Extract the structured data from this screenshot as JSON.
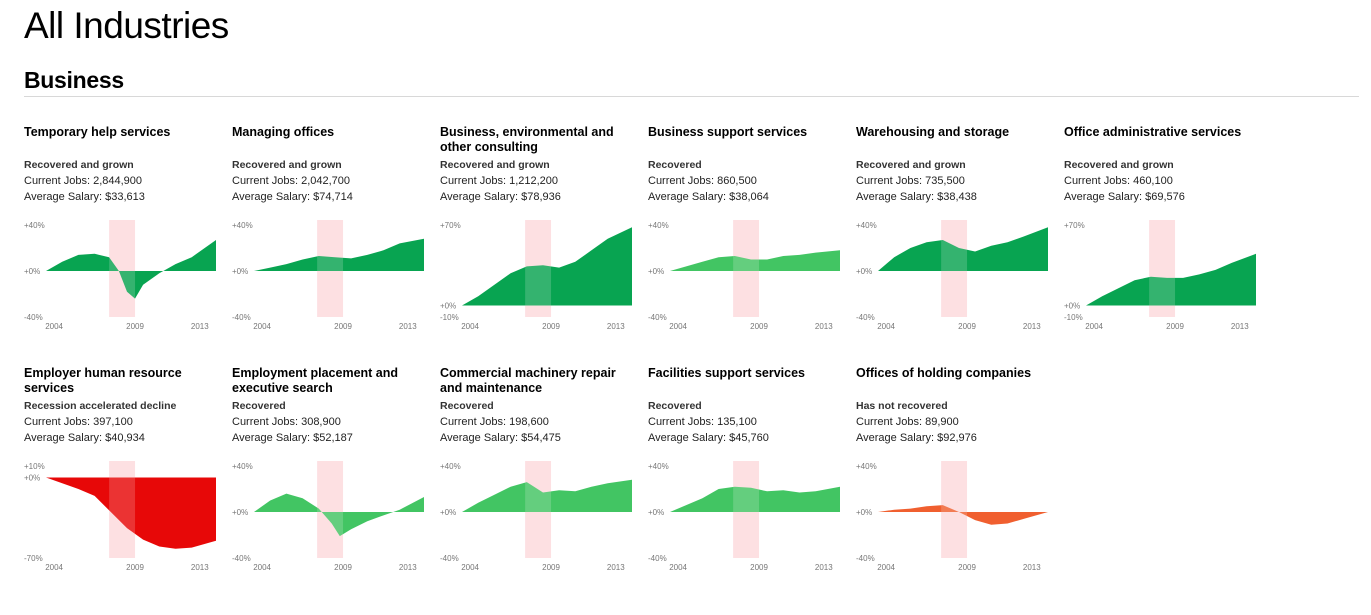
{
  "page": {
    "title": "All Industries",
    "section": "Business"
  },
  "colors": {
    "grown": "#00a14b",
    "recovered": "#3cc35e",
    "declined": "#e60000",
    "not_recovered": "#f05a28",
    "recession": "#fdd9dc",
    "axis_text": "#777777"
  },
  "chart_data": [
    {
      "type": "area",
      "title": "Temporary help services",
      "status": "Recovered and grown",
      "jobs": "Current Jobs: 2,844,900",
      "salary": "Average Salary: $33,613",
      "status_color": "grown",
      "ylim": [
        -40,
        40
      ],
      "yticks": [
        "+40%",
        "+0%",
        "-40%"
      ],
      "x_ticks": [
        "2004",
        "2009",
        "2013"
      ],
      "recession": [
        2007.9,
        2009.5
      ],
      "x_range": [
        2004,
        2014.5
      ],
      "points": [
        [
          2004,
          0
        ],
        [
          2005,
          8
        ],
        [
          2006,
          14
        ],
        [
          2007,
          15
        ],
        [
          2007.9,
          12
        ],
        [
          2008.5,
          0
        ],
        [
          2009,
          -18
        ],
        [
          2009.5,
          -24
        ],
        [
          2010,
          -12
        ],
        [
          2011,
          -2
        ],
        [
          2012,
          6
        ],
        [
          2013,
          12
        ],
        [
          2014.5,
          27
        ]
      ]
    },
    {
      "type": "area",
      "title": "Managing offices",
      "status": "Recovered and grown",
      "jobs": "Current Jobs: 2,042,700",
      "salary": "Average Salary: $74,714",
      "status_color": "grown",
      "ylim": [
        -40,
        40
      ],
      "yticks": [
        "+40%",
        "+0%",
        "-40%"
      ],
      "x_ticks": [
        "2004",
        "2009",
        "2013"
      ],
      "recession": [
        2007.9,
        2009.5
      ],
      "x_range": [
        2004,
        2014.5
      ],
      "points": [
        [
          2004,
          0
        ],
        [
          2005,
          3
        ],
        [
          2006,
          6
        ],
        [
          2007,
          10
        ],
        [
          2008,
          13
        ],
        [
          2009,
          12
        ],
        [
          2010,
          11
        ],
        [
          2011,
          14
        ],
        [
          2012,
          18
        ],
        [
          2013,
          24
        ],
        [
          2014.5,
          28
        ]
      ]
    },
    {
      "type": "area",
      "title": "Business, environmental and other consulting",
      "status": "Recovered and grown",
      "jobs": "Current Jobs: 1,212,200",
      "salary": "Average Salary: $78,936",
      "status_color": "grown",
      "ylim": [
        -10,
        70
      ],
      "yticks": [
        "+70%",
        "+0%",
        "-10%"
      ],
      "x_ticks": [
        "2004",
        "2009",
        "2013"
      ],
      "recession": [
        2007.9,
        2009.5
      ],
      "x_range": [
        2004,
        2014.5
      ],
      "points": [
        [
          2004,
          0
        ],
        [
          2005,
          8
        ],
        [
          2006,
          18
        ],
        [
          2007,
          28
        ],
        [
          2008,
          34
        ],
        [
          2009,
          35
        ],
        [
          2010,
          33
        ],
        [
          2011,
          38
        ],
        [
          2012,
          48
        ],
        [
          2013,
          58
        ],
        [
          2014.5,
          68
        ]
      ]
    },
    {
      "type": "area",
      "title": "Business support services",
      "status": "Recovered",
      "jobs": "Current Jobs: 860,500",
      "salary": "Average Salary: $38,064",
      "status_color": "recovered",
      "ylim": [
        -40,
        40
      ],
      "yticks": [
        "+40%",
        "+0%",
        "-40%"
      ],
      "x_ticks": [
        "2004",
        "2009",
        "2013"
      ],
      "recession": [
        2007.9,
        2009.5
      ],
      "x_range": [
        2004,
        2014.5
      ],
      "points": [
        [
          2004,
          0
        ],
        [
          2005,
          4
        ],
        [
          2006,
          8
        ],
        [
          2007,
          12
        ],
        [
          2008,
          13
        ],
        [
          2009,
          10
        ],
        [
          2010,
          10
        ],
        [
          2011,
          13
        ],
        [
          2012,
          14
        ],
        [
          2013,
          16
        ],
        [
          2014.5,
          18
        ]
      ]
    },
    {
      "type": "area",
      "title": "Warehousing and storage",
      "status": "Recovered and grown",
      "jobs": "Current Jobs: 735,500",
      "salary": "Average Salary: $38,438",
      "status_color": "grown",
      "ylim": [
        -40,
        40
      ],
      "yticks": [
        "+40%",
        "+0%",
        "-40%"
      ],
      "x_ticks": [
        "2004",
        "2009",
        "2013"
      ],
      "recession": [
        2007.9,
        2009.5
      ],
      "x_range": [
        2004,
        2014.5
      ],
      "points": [
        [
          2004,
          0
        ],
        [
          2005,
          12
        ],
        [
          2006,
          20
        ],
        [
          2007,
          25
        ],
        [
          2008,
          27
        ],
        [
          2009,
          20
        ],
        [
          2010,
          17
        ],
        [
          2011,
          22
        ],
        [
          2012,
          25
        ],
        [
          2013,
          30
        ],
        [
          2014.5,
          38
        ]
      ]
    },
    {
      "type": "area",
      "title": "Office administrative services",
      "status": "Recovered and grown",
      "jobs": "Current Jobs: 460,100",
      "salary": "Average Salary: $69,576",
      "status_color": "grown",
      "ylim": [
        -10,
        70
      ],
      "yticks": [
        "+70%",
        "+0%",
        "-10%"
      ],
      "x_ticks": [
        "2004",
        "2009",
        "2013"
      ],
      "recession": [
        2007.9,
        2009.5
      ],
      "x_range": [
        2004,
        2014.5
      ],
      "points": [
        [
          2004,
          0
        ],
        [
          2005,
          8
        ],
        [
          2006,
          15
        ],
        [
          2007,
          22
        ],
        [
          2008,
          25
        ],
        [
          2009,
          24
        ],
        [
          2010,
          24
        ],
        [
          2011,
          27
        ],
        [
          2012,
          31
        ],
        [
          2013,
          37
        ],
        [
          2014.5,
          45
        ]
      ]
    },
    {
      "type": "area",
      "title": "Employer human resource services",
      "status": "Recession accelerated decline",
      "jobs": "Current Jobs: 397,100",
      "salary": "Average Salary: $40,934",
      "status_color": "declined",
      "ylim": [
        -70,
        10
      ],
      "yticks": [
        "+10%",
        "+0%",
        "-70%"
      ],
      "x_ticks": [
        "2004",
        "2009",
        "2013"
      ],
      "recession": [
        2007.9,
        2009.5
      ],
      "x_range": [
        2004,
        2014.5
      ],
      "points": [
        [
          2004,
          0
        ],
        [
          2005,
          -5
        ],
        [
          2006,
          -10
        ],
        [
          2007,
          -16
        ],
        [
          2008,
          -30
        ],
        [
          2009,
          -44
        ],
        [
          2010,
          -54
        ],
        [
          2011,
          -60
        ],
        [
          2012,
          -62
        ],
        [
          2013,
          -61
        ],
        [
          2014.5,
          -55
        ]
      ]
    },
    {
      "type": "area",
      "title": "Employment placement and executive search",
      "status": "Recovered",
      "jobs": "Current Jobs: 308,900",
      "salary": "Average Salary: $52,187",
      "status_color": "recovered",
      "ylim": [
        -40,
        40
      ],
      "yticks": [
        "+40%",
        "+0%",
        "-40%"
      ],
      "x_ticks": [
        "2004",
        "2009",
        "2013"
      ],
      "recession": [
        2007.9,
        2009.5
      ],
      "x_range": [
        2004,
        2014.5
      ],
      "points": [
        [
          2004,
          0
        ],
        [
          2005,
          10
        ],
        [
          2006,
          16
        ],
        [
          2007,
          12
        ],
        [
          2008,
          3
        ],
        [
          2008.8,
          -10
        ],
        [
          2009.3,
          -21
        ],
        [
          2010,
          -15
        ],
        [
          2011,
          -8
        ],
        [
          2012,
          -3
        ],
        [
          2013,
          2
        ],
        [
          2014.5,
          13
        ]
      ]
    },
    {
      "type": "area",
      "title": "Commercial machinery repair and maintenance",
      "status": "Recovered",
      "jobs": "Current Jobs: 198,600",
      "salary": "Average Salary: $54,475",
      "status_color": "recovered",
      "ylim": [
        -40,
        40
      ],
      "yticks": [
        "+40%",
        "+0%",
        "-40%"
      ],
      "x_ticks": [
        "2004",
        "2009",
        "2013"
      ],
      "recession": [
        2007.9,
        2009.5
      ],
      "x_range": [
        2004,
        2014.5
      ],
      "points": [
        [
          2004,
          0
        ],
        [
          2005,
          8
        ],
        [
          2006,
          15
        ],
        [
          2007,
          22
        ],
        [
          2008,
          26
        ],
        [
          2009,
          17
        ],
        [
          2010,
          19
        ],
        [
          2011,
          18
        ],
        [
          2012,
          22
        ],
        [
          2013,
          25
        ],
        [
          2014.5,
          28
        ]
      ]
    },
    {
      "type": "area",
      "title": "Facilities support services",
      "status": "Recovered",
      "jobs": "Current Jobs: 135,100",
      "salary": "Average Salary: $45,760",
      "status_color": "recovered",
      "ylim": [
        -40,
        40
      ],
      "yticks": [
        "+40%",
        "+0%",
        "-40%"
      ],
      "x_ticks": [
        "2004",
        "2009",
        "2013"
      ],
      "recession": [
        2007.9,
        2009.5
      ],
      "x_range": [
        2004,
        2014.5
      ],
      "points": [
        [
          2004,
          0
        ],
        [
          2005,
          6
        ],
        [
          2006,
          12
        ],
        [
          2007,
          20
        ],
        [
          2008,
          22
        ],
        [
          2009,
          21
        ],
        [
          2010,
          18
        ],
        [
          2011,
          19
        ],
        [
          2012,
          17
        ],
        [
          2013,
          18
        ],
        [
          2014.5,
          22
        ]
      ]
    },
    {
      "type": "area",
      "title": "Offices of holding companies",
      "status": "Has not recovered",
      "jobs": "Current Jobs: 89,900",
      "salary": "Average Salary: $92,976",
      "status_color": "not_recovered",
      "ylim": [
        -40,
        40
      ],
      "yticks": [
        "+40%",
        "+0%",
        "-40%"
      ],
      "x_ticks": [
        "2004",
        "2009",
        "2013"
      ],
      "recession": [
        2007.9,
        2009.5
      ],
      "x_range": [
        2004,
        2014.5
      ],
      "points": [
        [
          2004,
          0
        ],
        [
          2005,
          2
        ],
        [
          2006,
          3
        ],
        [
          2007,
          5
        ],
        [
          2008,
          6
        ],
        [
          2009,
          0
        ],
        [
          2010,
          -7
        ],
        [
          2011,
          -11
        ],
        [
          2012,
          -10
        ],
        [
          2013,
          -6
        ],
        [
          2014.5,
          0
        ]
      ]
    }
  ]
}
